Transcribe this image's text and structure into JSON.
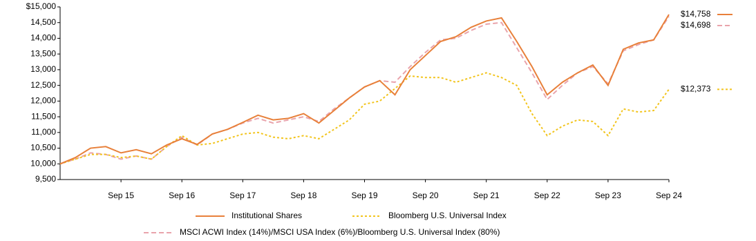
{
  "chart_data": {
    "type": "line",
    "categories": [
      null,
      null,
      null,
      null,
      "Sep 15",
      null,
      null,
      null,
      "Sep 16",
      null,
      null,
      null,
      "Sep 17",
      null,
      null,
      null,
      "Sep 18",
      null,
      null,
      null,
      "Sep 19",
      null,
      null,
      null,
      "Sep 20",
      null,
      null,
      null,
      "Sep 21",
      null,
      null,
      null,
      "Sep 22",
      null,
      null,
      null,
      "Sep 23",
      null,
      null,
      null,
      "Sep 24"
    ],
    "ylim": [
      9500,
      15000
    ],
    "yticks": [
      {
        "value": 9500,
        "label": "9,500"
      },
      {
        "value": 10000,
        "label": "10,000"
      },
      {
        "value": 10500,
        "label": "10,500"
      },
      {
        "value": 11000,
        "label": "11,000"
      },
      {
        "value": 11500,
        "label": "11,500"
      },
      {
        "value": 12000,
        "label": "12,000"
      },
      {
        "value": 12500,
        "label": "12,500"
      },
      {
        "value": 13000,
        "label": "13,000"
      },
      {
        "value": 13500,
        "label": "13,500"
      },
      {
        "value": 14000,
        "label": "14,000"
      },
      {
        "value": 14500,
        "label": "14,500"
      },
      {
        "value": 15000,
        "label": "$15,000"
      }
    ],
    "legend": "bottom",
    "series": [
      {
        "name": "Institutional Shares",
        "color": "#e8803a",
        "style": "solid",
        "values": [
          10000,
          10200,
          10500,
          10550,
          10350,
          10450,
          10320,
          10600,
          10800,
          10620,
          10950,
          11100,
          11320,
          11550,
          11400,
          11450,
          11600,
          11300,
          11700,
          12100,
          12450,
          12650,
          12200,
          13000,
          13450,
          13900,
          14050,
          14350,
          14550,
          14650,
          13900,
          13100,
          12200,
          12600,
          12900,
          13150,
          12500,
          13650,
          13850,
          13950,
          14758
        ],
        "value_labels": [
          null,
          null,
          null,
          null,
          null,
          null,
          null,
          null,
          null,
          null,
          null,
          null,
          null,
          null,
          null,
          null,
          null,
          null,
          null,
          null,
          null,
          null,
          null,
          null,
          null,
          null,
          null,
          null,
          null,
          null,
          null,
          null,
          null,
          null,
          null,
          null,
          null,
          null,
          null,
          null,
          "$14,758"
        ]
      },
      {
        "name": "Bloomberg U.S. Universal Index",
        "color": "#f2c41c",
        "style": "dotted",
        "values": [
          10000,
          10150,
          10300,
          10300,
          10200,
          10250,
          10150,
          10550,
          10900,
          10600,
          10650,
          10800,
          10950,
          11000,
          10850,
          10800,
          10900,
          10800,
          11100,
          11400,
          11900,
          12000,
          12400,
          12800,
          12750,
          12750,
          12600,
          12750,
          12900,
          12750,
          12500,
          11600,
          10900,
          11200,
          11400,
          11350,
          10900,
          11750,
          11650,
          11700,
          12373
        ],
        "value_labels": [
          null,
          null,
          null,
          null,
          null,
          null,
          null,
          null,
          null,
          null,
          null,
          null,
          null,
          null,
          null,
          null,
          null,
          null,
          null,
          null,
          null,
          null,
          null,
          null,
          null,
          null,
          null,
          null,
          null,
          null,
          null,
          null,
          null,
          null,
          null,
          null,
          null,
          null,
          null,
          null,
          "$12,373"
        ]
      },
      {
        "name": "MSCI ACWI Index (14%)/MSCI USA Index (6%)/Bloomberg U.S. Universal Index (80%)",
        "color": "#e9a3ab",
        "style": "dashed",
        "values": [
          10000,
          10150,
          10350,
          10300,
          10150,
          10250,
          10150,
          10550,
          10850,
          10600,
          10950,
          11100,
          11300,
          11450,
          11300,
          11400,
          11500,
          11350,
          11750,
          12100,
          12450,
          12650,
          12600,
          13100,
          13550,
          13950,
          14000,
          14250,
          14450,
          14500,
          13700,
          12900,
          12050,
          12500,
          12900,
          13100,
          12550,
          13600,
          13800,
          13950,
          14698
        ],
        "value_labels": [
          null,
          null,
          null,
          null,
          null,
          null,
          null,
          null,
          null,
          null,
          null,
          null,
          null,
          null,
          null,
          null,
          null,
          null,
          null,
          null,
          null,
          null,
          null,
          null,
          null,
          null,
          null,
          null,
          null,
          null,
          null,
          null,
          null,
          null,
          null,
          null,
          null,
          null,
          null,
          null,
          "$14,698"
        ]
      }
    ]
  }
}
